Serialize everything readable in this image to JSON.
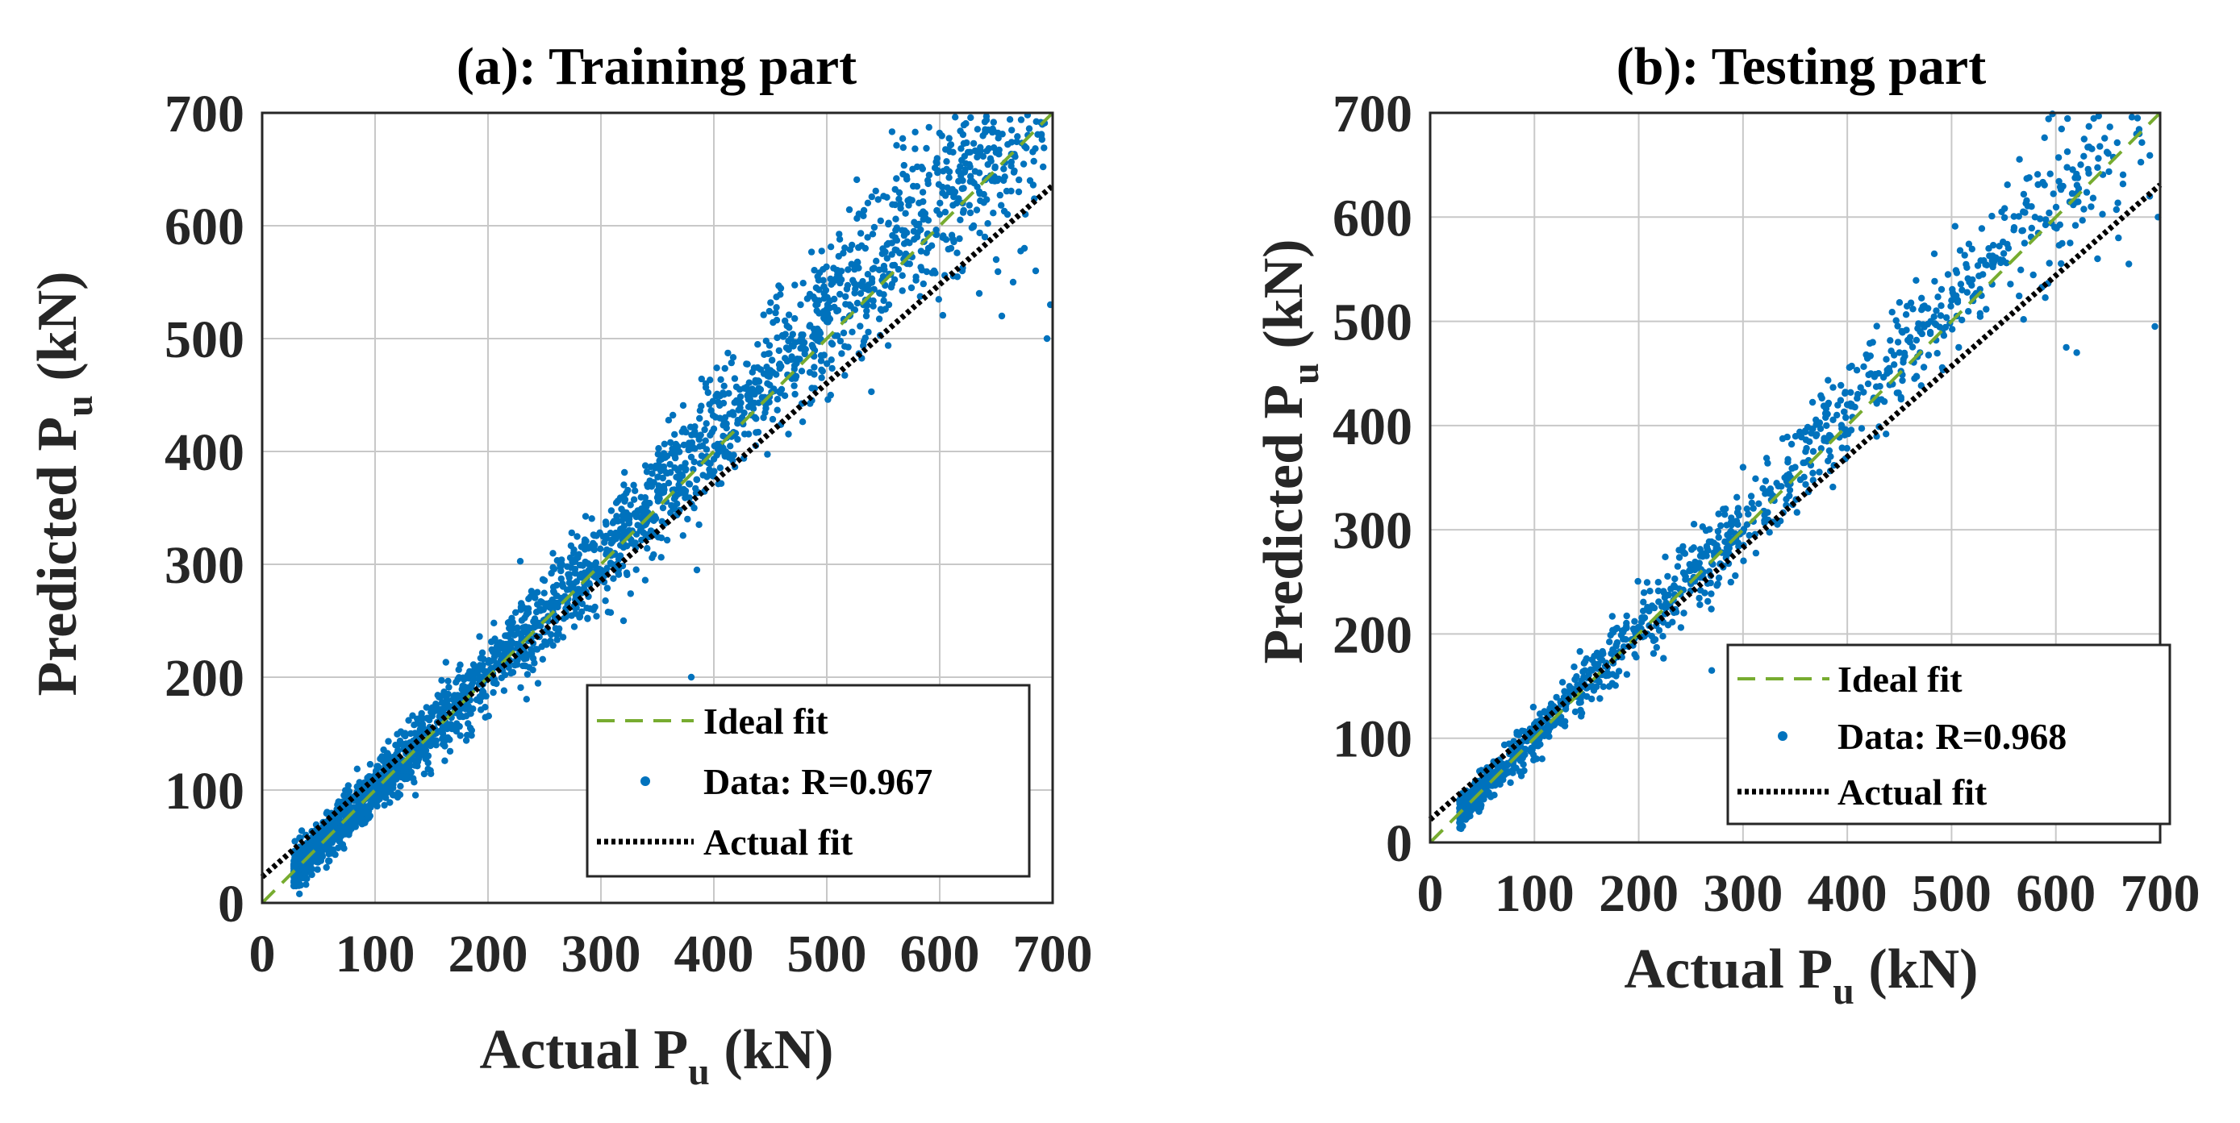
{
  "colors": {
    "ideal": "#77ac30",
    "data": "#0072bd",
    "actual": "#000000",
    "grid": "#c8c8c8",
    "axis": "#262626"
  },
  "chart_data": [
    {
      "type": "scatter",
      "title": "(a): Training part",
      "xlabel": {
        "main": "Actual P",
        "sub": "u",
        "unit": " (kN)"
      },
      "ylabel": {
        "main": "Predicted P",
        "sub": "u",
        "unit": " (kN)"
      },
      "xlim": [
        0,
        700
      ],
      "ylim": [
        0,
        700
      ],
      "xticks": [
        0,
        100,
        200,
        300,
        400,
        500,
        600,
        700
      ],
      "yticks": [
        0,
        100,
        200,
        300,
        400,
        500,
        600,
        700
      ],
      "grid": true,
      "legend_position": "bottom-right",
      "legend": [
        "Ideal fit",
        "Data: R=0.967",
        "Actual fit"
      ],
      "ideal_fit": {
        "slope": 1,
        "intercept": 0
      },
      "actual_fit": {
        "slope": 0.875,
        "intercept": 23
      },
      "points_sampled": [
        [
          30,
          15
        ],
        [
          33,
          8
        ],
        [
          37,
          22
        ],
        [
          40,
          30
        ],
        [
          44,
          25
        ],
        [
          48,
          45
        ],
        [
          52,
          38
        ],
        [
          55,
          60
        ],
        [
          60,
          48
        ],
        [
          63,
          70
        ],
        [
          68,
          55
        ],
        [
          72,
          62
        ],
        [
          75,
          85
        ],
        [
          80,
          70
        ],
        [
          85,
          78
        ],
        [
          88,
          95
        ],
        [
          92,
          80
        ],
        [
          96,
          88
        ],
        [
          100,
          110
        ],
        [
          104,
          92
        ],
        [
          108,
          100
        ],
        [
          112,
          118
        ],
        [
          116,
          105
        ],
        [
          120,
          125
        ],
        [
          124,
          112
        ],
        [
          128,
          120
        ],
        [
          132,
          138
        ],
        [
          136,
          126
        ],
        [
          140,
          150
        ],
        [
          145,
          135
        ],
        [
          150,
          142
        ],
        [
          155,
          160
        ],
        [
          160,
          150
        ],
        [
          165,
          158
        ],
        [
          170,
          175
        ],
        [
          175,
          165
        ],
        [
          180,
          172
        ],
        [
          185,
          190
        ],
        [
          190,
          180
        ],
        [
          195,
          188
        ],
        [
          200,
          205
        ],
        [
          205,
          195
        ],
        [
          210,
          210
        ],
        [
          215,
          202
        ],
        [
          220,
          225
        ],
        [
          225,
          215
        ],
        [
          230,
          222
        ],
        [
          235,
          240
        ],
        [
          240,
          230
        ],
        [
          245,
          248
        ],
        [
          250,
          240
        ],
        [
          255,
          262
        ],
        [
          260,
          250
        ],
        [
          265,
          270
        ],
        [
          270,
          262
        ],
        [
          275,
          280
        ],
        [
          280,
          270
        ],
        [
          285,
          290
        ],
        [
          290,
          282
        ],
        [
          295,
          300
        ],
        [
          300,
          295
        ],
        [
          305,
          310
        ],
        [
          310,
          300
        ],
        [
          315,
          325
        ],
        [
          320,
          315
        ],
        [
          325,
          330
        ],
        [
          330,
          345
        ],
        [
          335,
          330
        ],
        [
          340,
          355
        ],
        [
          345,
          340
        ],
        [
          350,
          365
        ],
        [
          355,
          350
        ],
        [
          360,
          372
        ],
        [
          365,
          358
        ],
        [
          370,
          380
        ],
        [
          375,
          365
        ],
        [
          380,
          395
        ],
        [
          385,
          375
        ],
        [
          390,
          405
        ],
        [
          395,
          390
        ],
        [
          400,
          420
        ],
        [
          405,
          400
        ],
        [
          410,
          430
        ],
        [
          415,
          415
        ],
        [
          420,
          445
        ],
        [
          425,
          430
        ],
        [
          430,
          450
        ],
        [
          435,
          438
        ],
        [
          440,
          462
        ],
        [
          445,
          448
        ],
        [
          450,
          470
        ],
        [
          460,
          455
        ],
        [
          465,
          480
        ],
        [
          470,
          465
        ],
        [
          480,
          490
        ],
        [
          485,
          470
        ],
        [
          490,
          500
        ],
        [
          495,
          485
        ],
        [
          500,
          515
        ],
        [
          505,
          495
        ],
        [
          510,
          525
        ],
        [
          515,
          505
        ],
        [
          520,
          530
        ],
        [
          530,
          540
        ],
        [
          535,
          520
        ],
        [
          540,
          550
        ],
        [
          550,
          555
        ],
        [
          555,
          530
        ],
        [
          560,
          565
        ],
        [
          570,
          575
        ],
        [
          575,
          545
        ],
        [
          580,
          590
        ],
        [
          590,
          580
        ],
        [
          595,
          560
        ],
        [
          600,
          610
        ],
        [
          610,
          580
        ],
        [
          615,
          620
        ],
        [
          620,
          560
        ],
        [
          630,
          600
        ],
        [
          635,
          540
        ],
        [
          640,
          590
        ],
        [
          650,
          570
        ],
        [
          655,
          520
        ],
        [
          660,
          610
        ],
        [
          665,
          550
        ],
        [
          670,
          630
        ],
        [
          675,
          580
        ],
        [
          680,
          640
        ],
        [
          685,
          560
        ],
        [
          690,
          680
        ],
        [
          695,
          500
        ],
        [
          698,
          530
        ],
        [
          385,
          295
        ],
        [
          380,
          200
        ],
        [
          320,
          250
        ]
      ]
    },
    {
      "type": "scatter",
      "title": "(b): Testing part",
      "xlabel": {
        "main": "Actual P",
        "sub": "u",
        "unit": " (kN)"
      },
      "ylabel": {
        "main": "Predicted P",
        "sub": "u",
        "unit": " (kN)"
      },
      "xlim": [
        0,
        700
      ],
      "ylim": [
        0,
        700
      ],
      "xticks": [
        0,
        100,
        200,
        300,
        400,
        500,
        600,
        700
      ],
      "yticks": [
        0,
        100,
        200,
        300,
        400,
        500,
        600,
        700
      ],
      "grid": true,
      "legend_position": "bottom-right",
      "legend": [
        "Ideal fit",
        "Data: R=0.968",
        "Actual fit"
      ],
      "ideal_fit": {
        "slope": 1,
        "intercept": 0
      },
      "actual_fit": {
        "slope": 0.87,
        "intercept": 22
      },
      "points_sampled": [
        [
          30,
          15
        ],
        [
          34,
          22
        ],
        [
          38,
          30
        ],
        [
          42,
          40
        ],
        [
          46,
          35
        ],
        [
          50,
          55
        ],
        [
          55,
          48
        ],
        [
          60,
          65
        ],
        [
          64,
          58
        ],
        [
          68,
          75
        ],
        [
          72,
          68
        ],
        [
          76,
          85
        ],
        [
          80,
          78
        ],
        [
          85,
          95
        ],
        [
          90,
          88
        ],
        [
          95,
          105
        ],
        [
          100,
          98
        ],
        [
          105,
          115
        ],
        [
          110,
          108
        ],
        [
          115,
          125
        ],
        [
          120,
          118
        ],
        [
          125,
          135
        ],
        [
          130,
          128
        ],
        [
          135,
          148
        ],
        [
          140,
          140
        ],
        [
          145,
          155
        ],
        [
          150,
          148
        ],
        [
          155,
          165
        ],
        [
          160,
          158
        ],
        [
          165,
          175
        ],
        [
          170,
          168
        ],
        [
          175,
          185
        ],
        [
          180,
          178
        ],
        [
          185,
          195
        ],
        [
          190,
          188
        ],
        [
          195,
          205
        ],
        [
          200,
          198
        ],
        [
          205,
          215
        ],
        [
          210,
          208
        ],
        [
          215,
          225
        ],
        [
          220,
          215
        ],
        [
          225,
          235
        ],
        [
          230,
          228
        ],
        [
          235,
          245
        ],
        [
          240,
          238
        ],
        [
          245,
          255
        ],
        [
          250,
          248
        ],
        [
          255,
          265
        ],
        [
          260,
          258
        ],
        [
          265,
          275
        ],
        [
          270,
          268
        ],
        [
          275,
          285
        ],
        [
          280,
          278
        ],
        [
          285,
          295
        ],
        [
          290,
          288
        ],
        [
          295,
          305
        ],
        [
          300,
          298
        ],
        [
          305,
          315
        ],
        [
          310,
          308
        ],
        [
          315,
          325
        ],
        [
          320,
          318
        ],
        [
          325,
          335
        ],
        [
          330,
          328
        ],
        [
          340,
          350
        ],
        [
          345,
          338
        ],
        [
          350,
          360
        ],
        [
          355,
          348
        ],
        [
          360,
          375
        ],
        [
          365,
          362
        ],
        [
          370,
          390
        ],
        [
          375,
          378
        ],
        [
          380,
          400
        ],
        [
          385,
          388
        ],
        [
          390,
          410
        ],
        [
          395,
          398
        ],
        [
          400,
          420
        ],
        [
          405,
          408
        ],
        [
          410,
          430
        ],
        [
          420,
          440
        ],
        [
          425,
          425
        ],
        [
          430,
          450
        ],
        [
          440,
          455
        ],
        [
          450,
          470
        ],
        [
          460,
          480
        ],
        [
          470,
          490
        ],
        [
          480,
          500
        ],
        [
          490,
          515
        ],
        [
          500,
          520
        ],
        [
          505,
          505
        ],
        [
          510,
          530
        ],
        [
          520,
          540
        ],
        [
          530,
          545
        ],
        [
          540,
          555
        ],
        [
          550,
          565
        ],
        [
          560,
          590
        ],
        [
          570,
          575
        ],
        [
          580,
          600
        ],
        [
          600,
          590
        ],
        [
          610,
          475
        ],
        [
          620,
          470
        ],
        [
          640,
          560
        ],
        [
          660,
          580
        ],
        [
          670,
          555
        ],
        [
          680,
          680
        ],
        [
          690,
          620
        ],
        [
          695,
          495
        ],
        [
          698,
          600
        ],
        [
          270,
          165
        ],
        [
          300,
          360
        ]
      ]
    }
  ]
}
